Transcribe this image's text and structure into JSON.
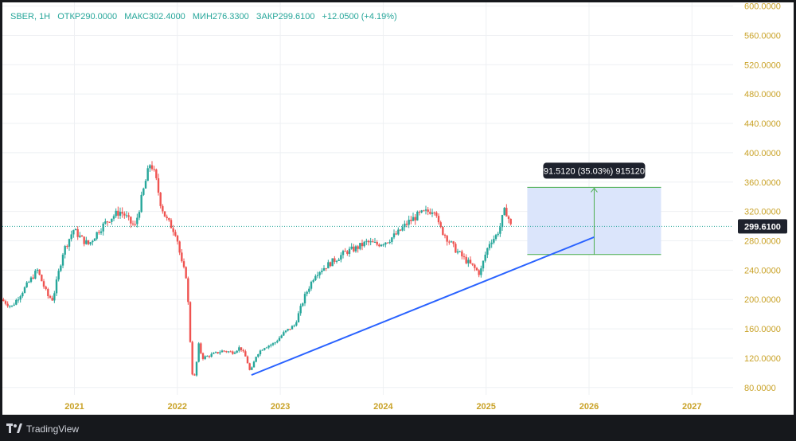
{
  "legend": {
    "symbol": "SBER, 1H",
    "open_label": "ОТКР",
    "open": "290.0000",
    "high_label": "МАКС",
    "high": "302.4000",
    "low_label": "МИН",
    "low": "276.3300",
    "close_label": "ЗАКР",
    "close": "299.6100",
    "change": "+12.0500 (+4.19%)"
  },
  "footer": {
    "brand": "TradingView"
  },
  "colors": {
    "up": "#26a69a",
    "down": "#ef5350",
    "trendline": "#2962ff",
    "measure_fill": "#dbe5fb",
    "measure_line": "#4caf50",
    "price_tag": "#1e222d",
    "tick_text": "#c9a227"
  },
  "chart_data": {
    "type": "candlestick",
    "y_ticks": [
      "80.0000",
      "120.0000",
      "160.0000",
      "200.0000",
      "240.0000",
      "280.0000",
      "320.0000",
      "360.0000",
      "400.0000",
      "440.0000",
      "480.0000",
      "520.0000",
      "560.0000",
      "600.0000"
    ],
    "x_ticks": [
      "2021",
      "2022",
      "2023",
      "2024",
      "2025",
      "2026",
      "2027"
    ],
    "ylim": [
      70,
      605
    ],
    "xlim": [
      2020.3,
      2027.4
    ],
    "current_price": "299.6100",
    "measure": {
      "label": "91.5120 (35.03%) 915120",
      "x_range": [
        2025.4,
        2026.7
      ],
      "y_range": [
        261.3,
        352.8
      ]
    },
    "trendline": {
      "from": [
        2022.72,
        97
      ],
      "to": [
        2026.05,
        285
      ]
    },
    "price_path": [
      [
        2020.3,
        200
      ],
      [
        2020.4,
        190
      ],
      [
        2020.5,
        210
      ],
      [
        2020.6,
        230
      ],
      [
        2020.65,
        240
      ],
      [
        2020.75,
        205
      ],
      [
        2020.8,
        200
      ],
      [
        2020.9,
        265
      ],
      [
        2021.0,
        295
      ],
      [
        2021.1,
        280
      ],
      [
        2021.15,
        275
      ],
      [
        2021.25,
        295
      ],
      [
        2021.35,
        310
      ],
      [
        2021.45,
        320
      ],
      [
        2021.5,
        315
      ],
      [
        2021.55,
        305
      ],
      [
        2021.6,
        300
      ],
      [
        2021.65,
        330
      ],
      [
        2021.7,
        360
      ],
      [
        2021.75,
        388
      ],
      [
        2021.8,
        365
      ],
      [
        2021.85,
        330
      ],
      [
        2021.9,
        310
      ],
      [
        2021.95,
        300
      ],
      [
        2022.0,
        290
      ],
      [
        2022.05,
        250
      ],
      [
        2022.1,
        230
      ],
      [
        2022.13,
        160
      ],
      [
        2022.15,
        100
      ],
      [
        2022.18,
        95
      ],
      [
        2022.22,
        140
      ],
      [
        2022.25,
        120
      ],
      [
        2022.35,
        125
      ],
      [
        2022.45,
        130
      ],
      [
        2022.55,
        128
      ],
      [
        2022.62,
        135
      ],
      [
        2022.68,
        120
      ],
      [
        2022.72,
        100
      ],
      [
        2022.78,
        125
      ],
      [
        2022.85,
        135
      ],
      [
        2022.95,
        140
      ],
      [
        2023.05,
        155
      ],
      [
        2023.15,
        165
      ],
      [
        2023.25,
        205
      ],
      [
        2023.35,
        235
      ],
      [
        2023.45,
        245
      ],
      [
        2023.55,
        255
      ],
      [
        2023.65,
        265
      ],
      [
        2023.75,
        270
      ],
      [
        2023.85,
        278
      ],
      [
        2023.95,
        275
      ],
      [
        2024.05,
        280
      ],
      [
        2024.15,
        290
      ],
      [
        2024.25,
        305
      ],
      [
        2024.35,
        315
      ],
      [
        2024.45,
        320
      ],
      [
        2024.52,
        325
      ],
      [
        2024.55,
        300
      ],
      [
        2024.6,
        290
      ],
      [
        2024.7,
        270
      ],
      [
        2024.8,
        255
      ],
      [
        2024.88,
        245
      ],
      [
        2024.95,
        235
      ],
      [
        2025.0,
        260
      ],
      [
        2025.05,
        280
      ],
      [
        2025.1,
        285
      ],
      [
        2025.15,
        300
      ],
      [
        2025.18,
        318
      ],
      [
        2025.2,
        322
      ],
      [
        2025.23,
        310
      ],
      [
        2025.25,
        300
      ]
    ]
  }
}
